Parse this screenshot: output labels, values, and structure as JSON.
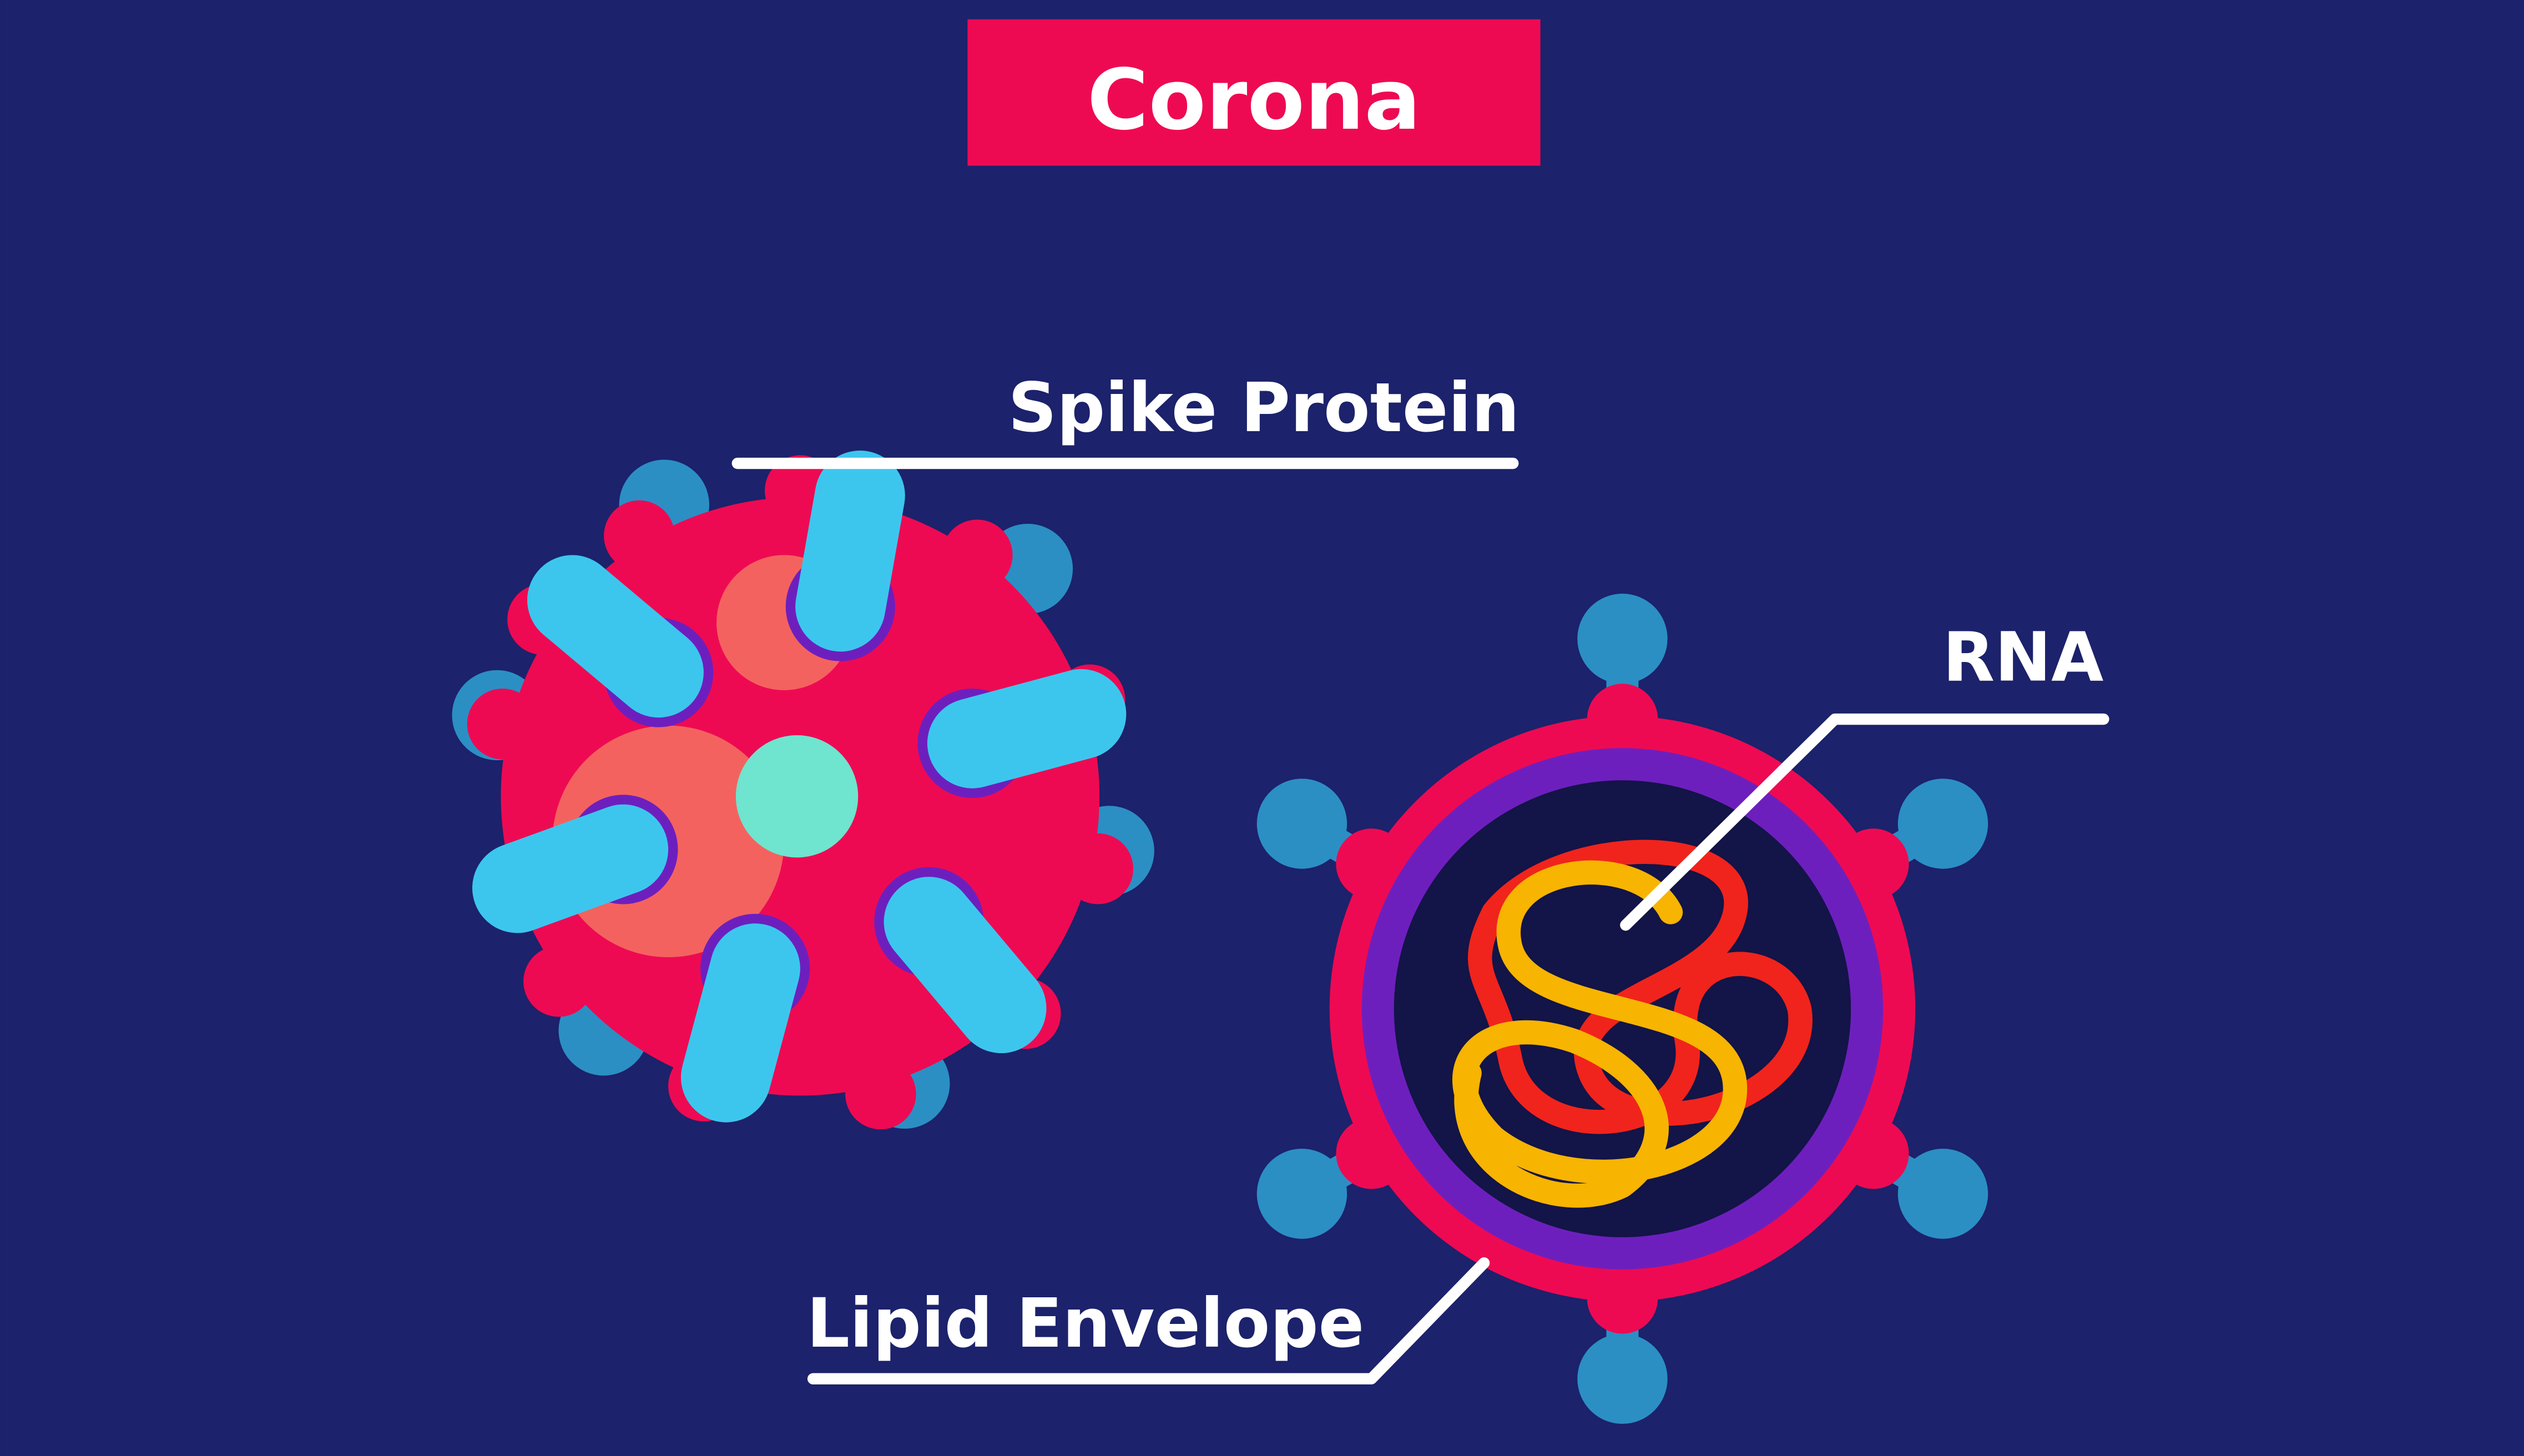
{
  "title": "Corona",
  "labels": {
    "spike_protein": "Spike Protein",
    "rna": "RNA",
    "lipid_envelope": "Lipid Envelope"
  },
  "colors": {
    "background": "#1c226b",
    "title_box": "#ee0a52",
    "virus_body": "#ee0a52",
    "spike_stalk": "#2b8fc4",
    "spike_head": "#3cc6ee",
    "spike_base": "#6d1fbe",
    "patch": "#f4625f",
    "core_dot": "#6fe4cf",
    "envelope_ring": "#6d1fbe",
    "interior": "#131447",
    "rna_red": "#f0241c",
    "rna_yellow": "#f7b400",
    "leader_line": "#ffffff"
  },
  "icons": [
    "virus-exterior-icon",
    "virus-cross-section-icon"
  ]
}
